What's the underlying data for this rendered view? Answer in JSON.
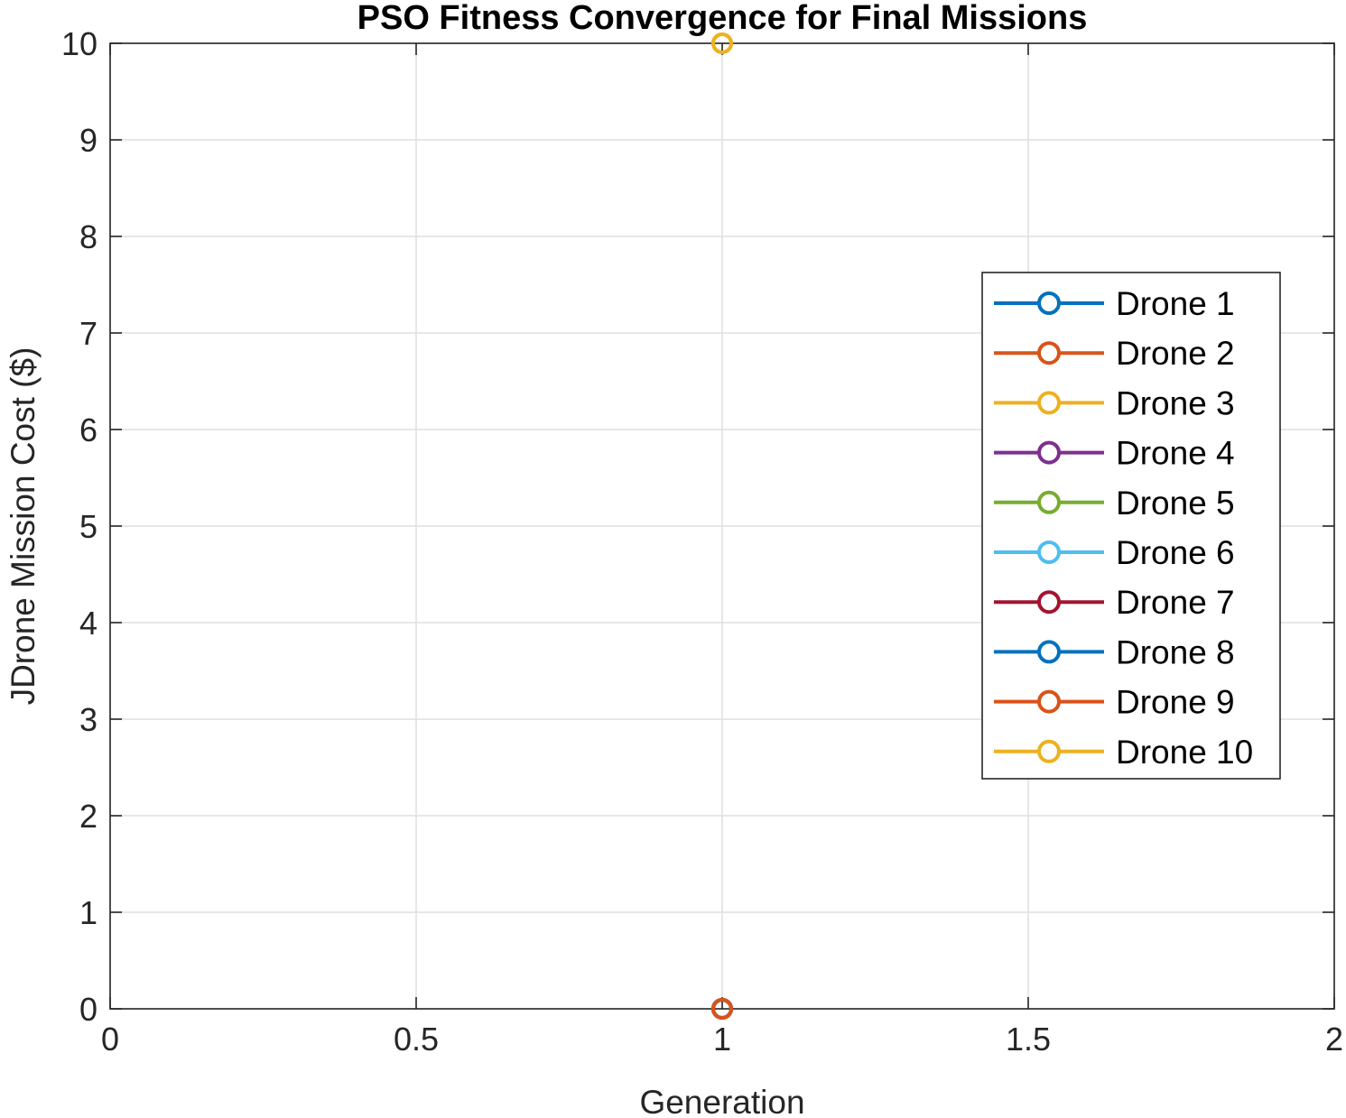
{
  "chart_data": {
    "type": "line",
    "title": "PSO Fitness Convergence for Final Missions",
    "xlabel": "Generation",
    "ylabel": "JDrone Mission Cost ($)",
    "xlim": [
      0,
      2
    ],
    "ylim": [
      0,
      10
    ],
    "xticks": [
      "0",
      "0.5",
      "1",
      "1.5",
      "2"
    ],
    "yticks": [
      "0",
      "1",
      "2",
      "3",
      "4",
      "5",
      "6",
      "7",
      "8",
      "9",
      "10"
    ],
    "grid": true,
    "legend_position": "right",
    "series": [
      {
        "name": "Drone 1",
        "color": "#0072BD",
        "x": [
          1
        ],
        "y": [
          0
        ]
      },
      {
        "name": "Drone 2",
        "color": "#D95319",
        "x": [
          1
        ],
        "y": [
          0
        ]
      },
      {
        "name": "Drone 3",
        "color": "#EDB120",
        "x": [
          1
        ],
        "y": [
          10
        ]
      },
      {
        "name": "Drone 4",
        "color": "#7E2F8E",
        "x": [
          1
        ],
        "y": [
          0
        ]
      },
      {
        "name": "Drone 5",
        "color": "#77AC30",
        "x": [
          1
        ],
        "y": [
          0
        ]
      },
      {
        "name": "Drone 6",
        "color": "#4DBEEE",
        "x": [
          1
        ],
        "y": [
          0
        ]
      },
      {
        "name": "Drone 7",
        "color": "#A2142F",
        "x": [
          1
        ],
        "y": [
          0
        ]
      },
      {
        "name": "Drone 8",
        "color": "#0072BD",
        "x": [
          1
        ],
        "y": [
          0
        ]
      },
      {
        "name": "Drone 9",
        "color": "#D95319",
        "x": [
          1
        ],
        "y": [
          0
        ]
      },
      {
        "name": "Drone 10",
        "color": "#EDB120",
        "x": [
          1
        ],
        "y": [
          10
        ]
      }
    ]
  }
}
